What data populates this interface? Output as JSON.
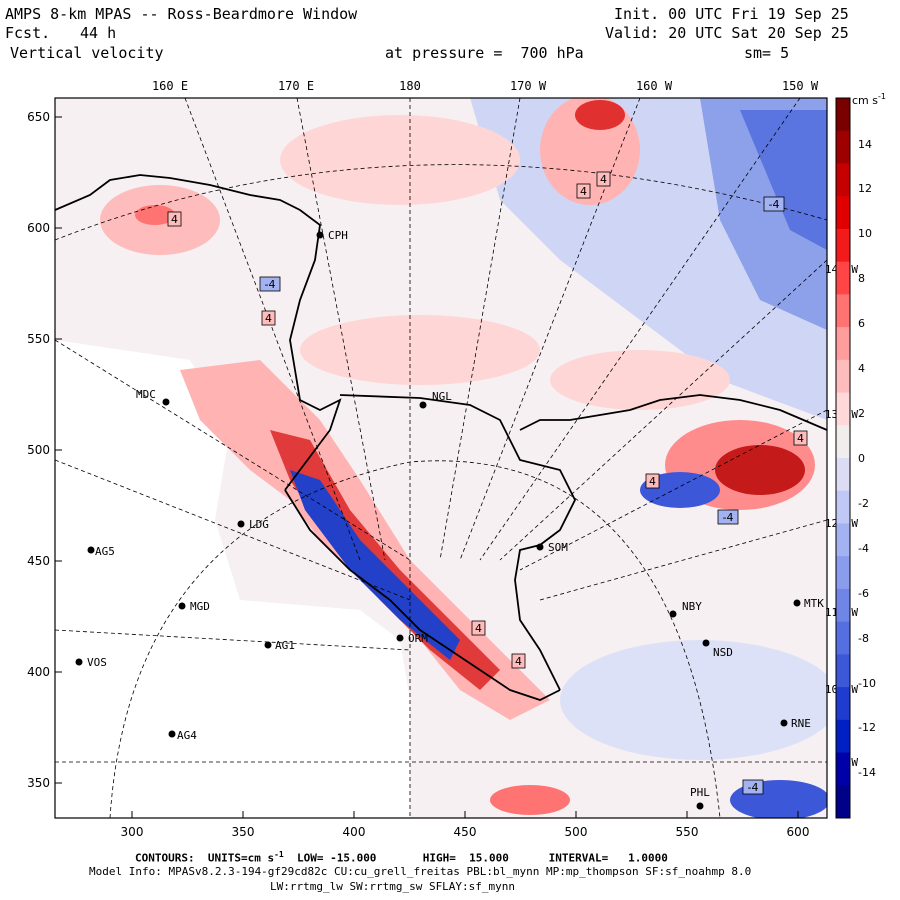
{
  "header": {
    "title": "AMPS 8-km MPAS -- Ross-Beardmore Window",
    "fcst_label": "Fcst.",
    "fcst_value": "44 h",
    "field": "Vertical velocity",
    "init": "Init. 00 UTC Fri 19 Sep 25",
    "valid": "Valid: 20 UTC Sat 20 Sep 25",
    "pressure": "at pressure =  700 hPa",
    "smoothing": "sm= 5"
  },
  "top_lon_labels": [
    "160 E",
    "170 E",
    "180",
    "170 W",
    "160 W",
    "150 W"
  ],
  "right_lon_labels": [
    "140 W",
    "130 W",
    "120 W",
    "110 W",
    "100 W",
    "W"
  ],
  "y_ticks": [
    "650",
    "600",
    "550",
    "500",
    "450",
    "400",
    "350"
  ],
  "x_ticks": [
    "300",
    "350",
    "400",
    "450",
    "500",
    "550",
    "600"
  ],
  "colorbar": {
    "unit": "cm s",
    "unit_exp": "-1",
    "labels": [
      "14",
      "12",
      "10",
      "8",
      "6",
      "4",
      "2",
      "0",
      "-2",
      "-4",
      "-6",
      "-8",
      "-10",
      "-12",
      "-14"
    ],
    "colors": [
      "#7a0000",
      "#9e0000",
      "#c40000",
      "#e00000",
      "#f21a1a",
      "#ff4545",
      "#ff7373",
      "#ff9c9c",
      "#ffbcbc",
      "#ffd9d9",
      "#f2eded",
      "#dcdcf5",
      "#c0c8f5",
      "#a3b2f0",
      "#8a9cec",
      "#6f86e6",
      "#556fe0",
      "#3d57d9",
      "#1f3bd0",
      "#0020c4",
      "#0000a8",
      "#000088"
    ]
  },
  "stations": [
    {
      "name": "MDC"
    },
    {
      "name": "AG5"
    },
    {
      "name": "MGD"
    },
    {
      "name": "VOS"
    },
    {
      "name": "AG1"
    },
    {
      "name": "AG4"
    },
    {
      "name": "NGL"
    },
    {
      "name": "CPH"
    },
    {
      "name": "LDG"
    },
    {
      "name": "SOM"
    },
    {
      "name": "NBY"
    },
    {
      "name": "NSD"
    },
    {
      "name": "MTK"
    },
    {
      "name": "RNE"
    },
    {
      "name": "PHL"
    },
    {
      "name": "ORM"
    }
  ],
  "contour_labels": [
    "4",
    "4",
    "-4",
    "4",
    "4",
    "-4",
    "-4",
    "4",
    "4",
    "4",
    "-4",
    "4"
  ],
  "footer": {
    "contours": "CONTOURS:  UNITS=cm s",
    "contours_exp": "-1",
    "contours_rest": "  LOW= -15.000       HIGH=  15.000      INTERVAL=   1.0000",
    "model_info": "Model Info: MPASv8.2.3-194-gf29cd82c CU:cu_grell_freitas PBL:bl_mynn MP:mp_thompson SF:sf_noahmp 8.0",
    "model_info2": "LW:rrtmg_lw SW:rrtmg_sw SFLAY:sf_mynn"
  },
  "palette": {
    "ice": "#ffffff",
    "warm": "#ffd6d6",
    "cool": "#d6dcf7",
    "red": "#d61a1a",
    "blue": "#1f3bd0"
  }
}
